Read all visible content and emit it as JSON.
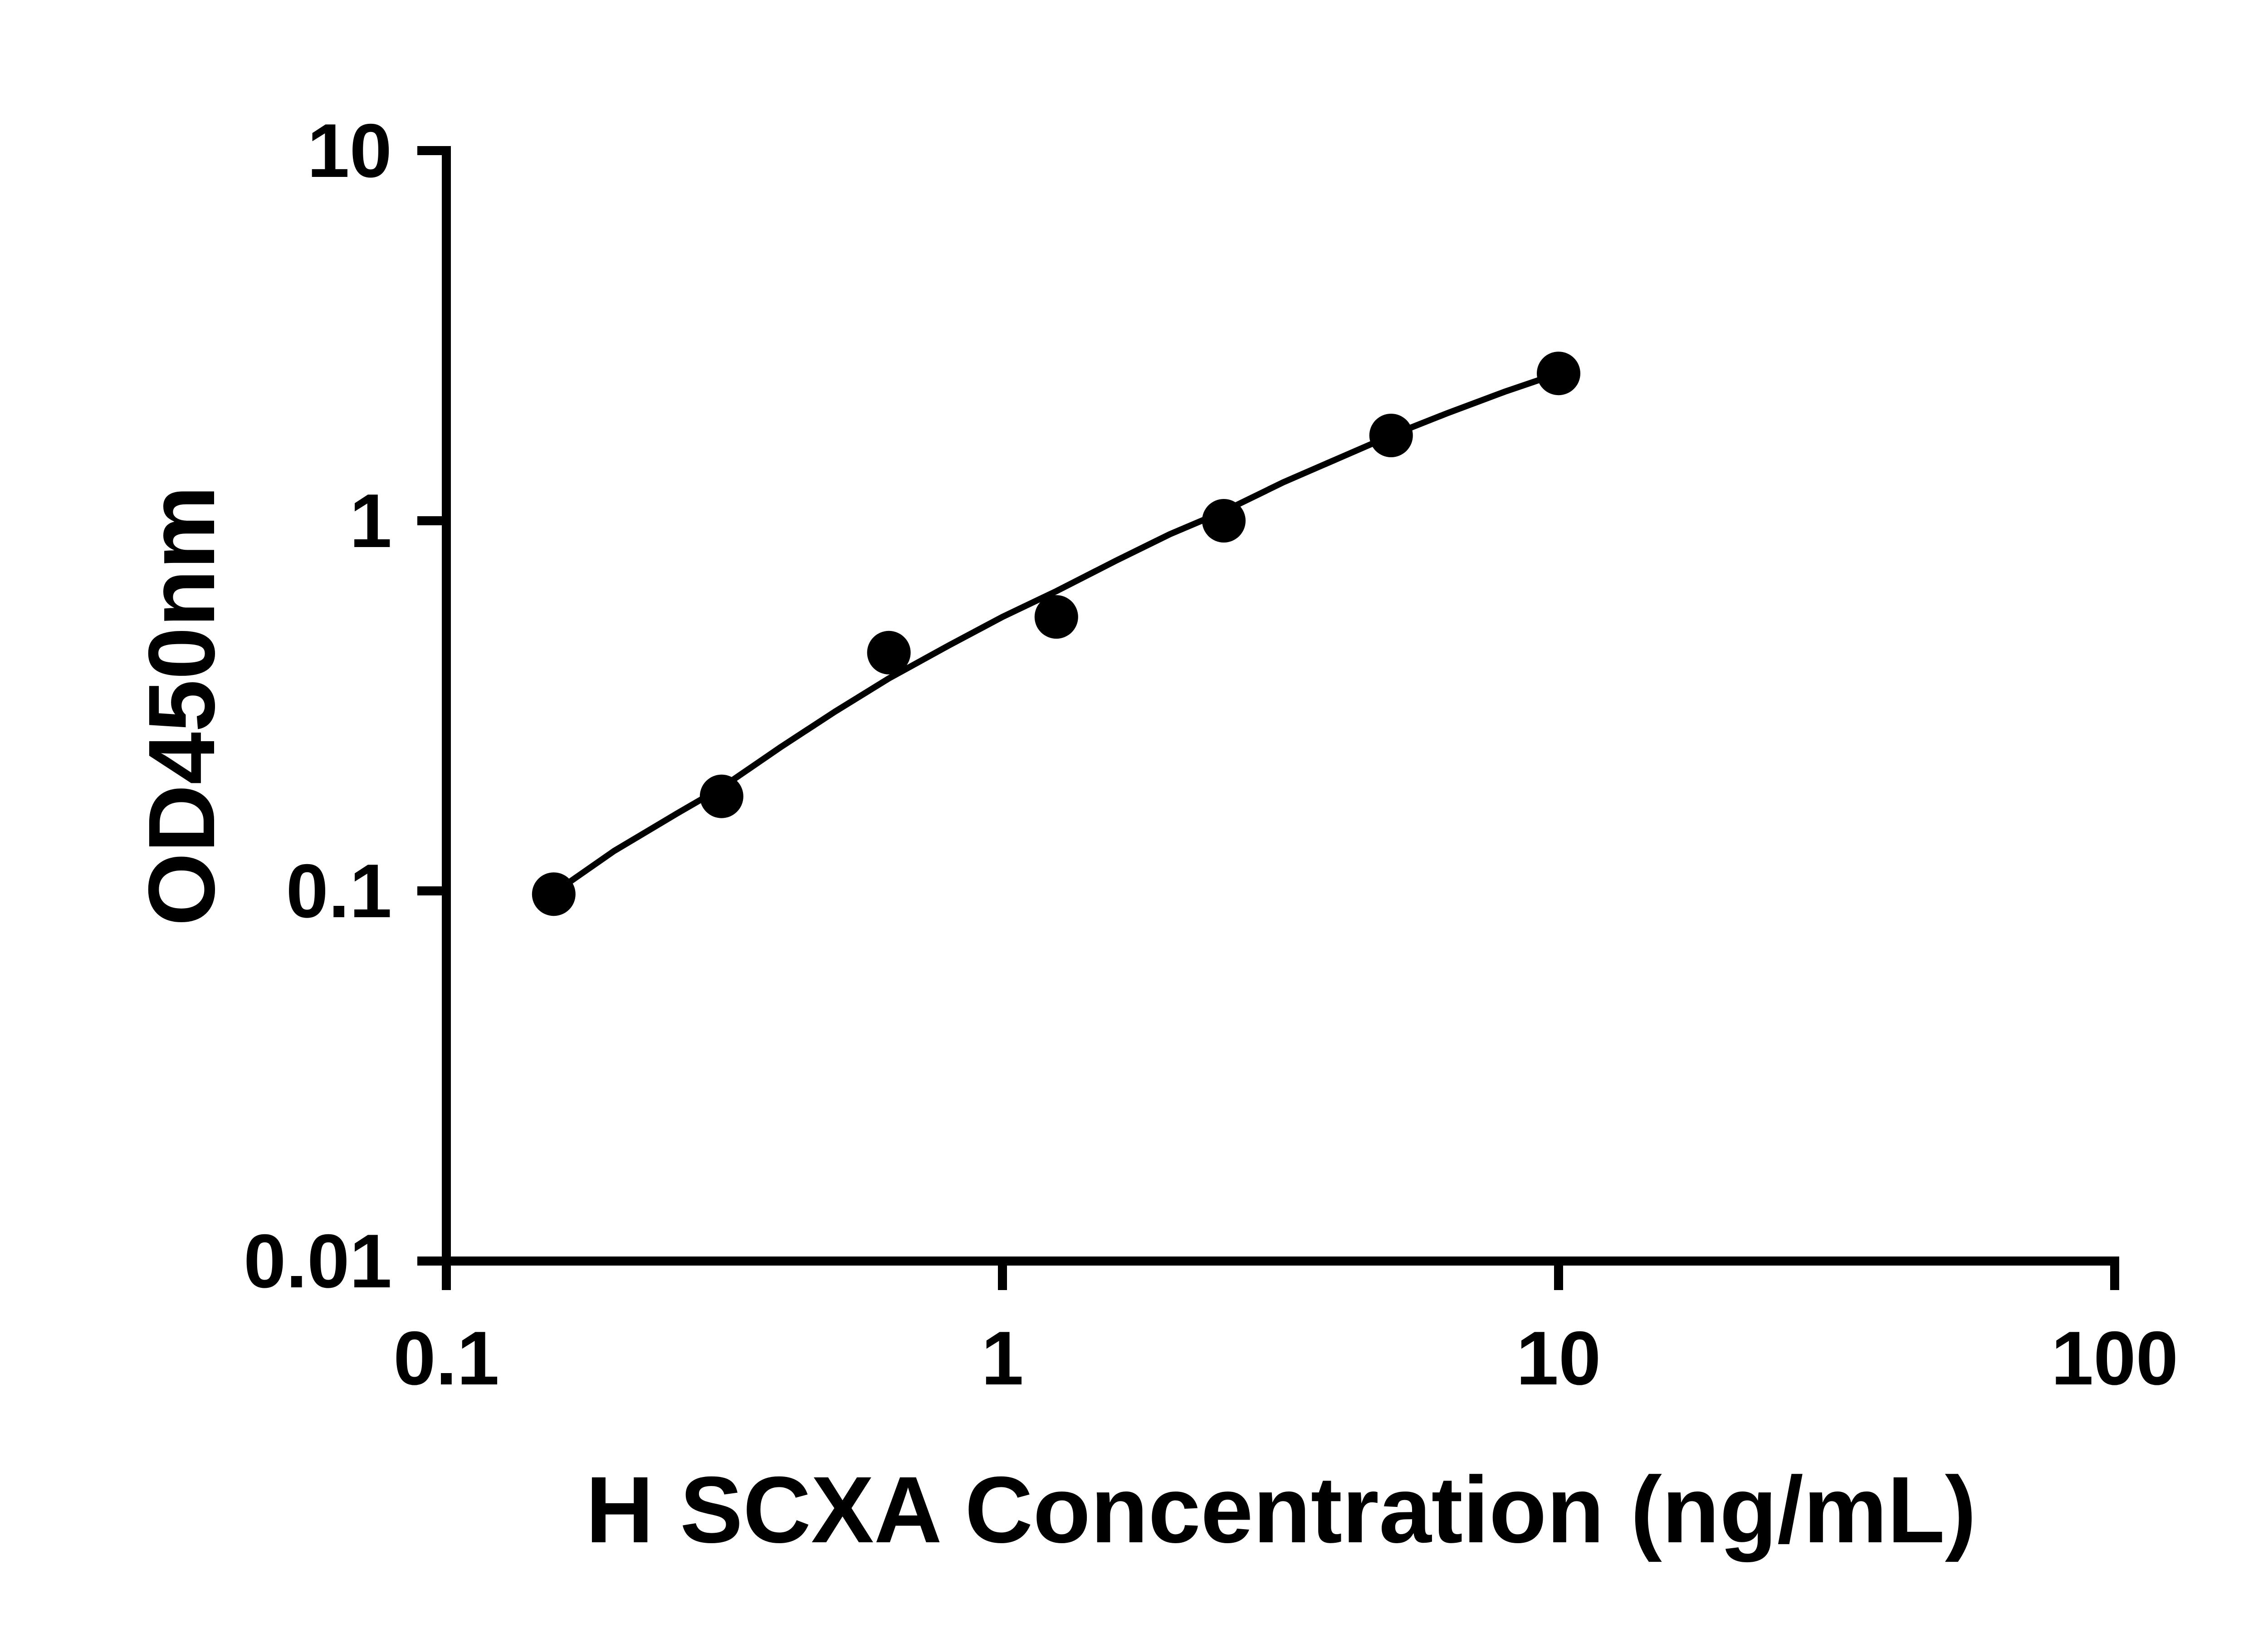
{
  "chart_data": {
    "type": "scatter",
    "title": "",
    "xlabel": "H SCXA Concentration (ng/mL)",
    "ylabel": "OD450nm",
    "x_scale": "log",
    "y_scale": "log",
    "xlim": [
      0.1,
      100
    ],
    "ylim": [
      0.01,
      10
    ],
    "x_ticks": [
      0.1,
      1,
      10,
      100
    ],
    "x_tick_labels": [
      "0.1",
      "1",
      "10",
      "100"
    ],
    "y_ticks": [
      0.01,
      0.1,
      1,
      10
    ],
    "y_tick_labels": [
      "0.01",
      "0.1",
      "1",
      "10"
    ],
    "grid": "off",
    "legend": "none",
    "x": [
      0.156,
      0.3125,
      0.625,
      1.25,
      2.5,
      5,
      10
    ],
    "y": [
      0.098,
      0.18,
      0.44,
      0.55,
      1.0,
      1.7,
      2.5
    ],
    "fit_curve": [
      [
        0.155,
        0.098
      ],
      [
        0.2,
        0.128
      ],
      [
        0.26,
        0.162
      ],
      [
        0.3125,
        0.19
      ],
      [
        0.4,
        0.245
      ],
      [
        0.5,
        0.305
      ],
      [
        0.625,
        0.375
      ],
      [
        0.8,
        0.46
      ],
      [
        1.0,
        0.55
      ],
      [
        1.25,
        0.645
      ],
      [
        1.6,
        0.78
      ],
      [
        2.0,
        0.92
      ],
      [
        2.5,
        1.06
      ],
      [
        3.2,
        1.27
      ],
      [
        4.0,
        1.47
      ],
      [
        5.0,
        1.7
      ],
      [
        6.3,
        1.95
      ],
      [
        8.0,
        2.23
      ],
      [
        10.0,
        2.5
      ]
    ],
    "marker_color": "#000000",
    "line_color": "#000000",
    "axis_color": "#000000",
    "background_color": "#ffffff"
  }
}
